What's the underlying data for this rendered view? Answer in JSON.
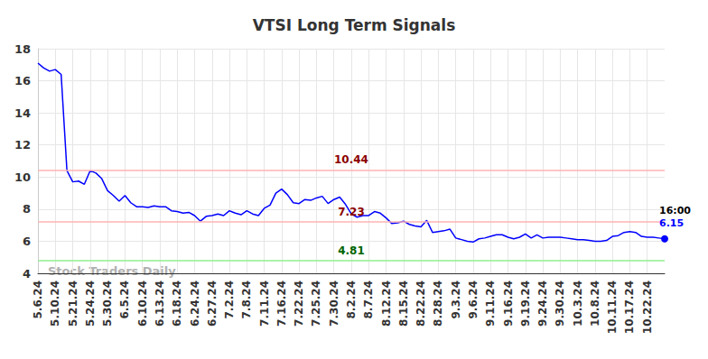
{
  "chart_data": {
    "type": "line",
    "title": "VTSI Long Term Signals",
    "categories": [
      "5.6.24",
      null,
      null,
      "5.10.24",
      null,
      null,
      "5.21.24",
      null,
      null,
      "5.24.24",
      null,
      null,
      "5.30.24",
      null,
      null,
      "6.5.24",
      null,
      null,
      "6.10.24",
      null,
      null,
      "6.13.24",
      null,
      null,
      "6.18.24",
      null,
      null,
      "6.24.24",
      null,
      null,
      "6.27.24",
      null,
      null,
      "7.2.24",
      null,
      null,
      "7.8.24",
      null,
      null,
      "7.11.24",
      null,
      null,
      "7.16.24",
      null,
      null,
      "7.22.24",
      null,
      null,
      "7.25.24",
      null,
      null,
      "7.30.24",
      null,
      null,
      "8.2.24",
      null,
      null,
      "8.7.24",
      null,
      null,
      "8.12.24",
      null,
      null,
      "8.15.24",
      null,
      null,
      "8.22.24",
      null,
      null,
      "8.28.24",
      null,
      null,
      "9.3.24",
      null,
      null,
      "9.6.24",
      null,
      null,
      "9.11.24",
      null,
      null,
      "9.16.24",
      null,
      null,
      "9.19.24",
      null,
      null,
      "9.24.24",
      null,
      null,
      "9.30.24",
      null,
      null,
      "10.3.24",
      null,
      null,
      "10.8.24",
      null,
      null,
      "10.11.24",
      null,
      null,
      "10.17.24",
      null,
      null,
      "10.22.24",
      null,
      null,
      null
    ],
    "values": [
      17.1,
      16.8,
      16.6,
      16.7,
      16.4,
      10.4,
      9.7,
      9.75,
      9.55,
      10.4,
      10.25,
      9.9,
      9.15,
      8.85,
      8.5,
      8.85,
      8.4,
      8.15,
      8.15,
      8.1,
      8.2,
      8.15,
      8.15,
      7.9,
      7.85,
      7.75,
      7.8,
      7.6,
      7.25,
      7.55,
      7.6,
      7.7,
      7.6,
      7.9,
      7.75,
      7.65,
      7.9,
      7.7,
      7.6,
      8.05,
      8.25,
      9.0,
      9.25,
      8.9,
      8.4,
      8.35,
      8.6,
      8.55,
      8.7,
      8.8,
      8.35,
      8.6,
      8.75,
      8.3,
      7.7,
      7.5,
      7.6,
      7.6,
      7.85,
      7.75,
      7.45,
      7.1,
      7.15,
      7.25,
      7.05,
      6.95,
      6.9,
      7.3,
      6.55,
      6.6,
      6.65,
      6.75,
      6.2,
      6.1,
      6.0,
      5.95,
      6.15,
      6.2,
      6.3,
      6.4,
      6.4,
      6.25,
      6.15,
      6.25,
      6.45,
      6.2,
      6.4,
      6.2,
      6.25,
      6.25,
      6.25,
      6.2,
      6.15,
      6.1,
      6.1,
      6.05,
      6.0,
      6.0,
      6.05,
      6.3,
      6.35,
      6.55,
      6.6,
      6.55,
      6.3,
      6.25,
      6.25,
      6.2,
      6.15
    ],
    "color": "#0000ff",
    "ylim": [
      4,
      18
    ],
    "yticks": [
      4,
      6,
      8,
      10,
      12,
      14,
      16,
      18
    ],
    "grid": true,
    "reference_lines": [
      {
        "value": 10.44,
        "color": "#ffb3b3"
      },
      {
        "value": 7.23,
        "color": "#ffb3b3"
      },
      {
        "value": 4.81,
        "color": "#90ee90"
      }
    ],
    "end_label": "16:00",
    "watermark": "Stock Traders Daily"
  }
}
